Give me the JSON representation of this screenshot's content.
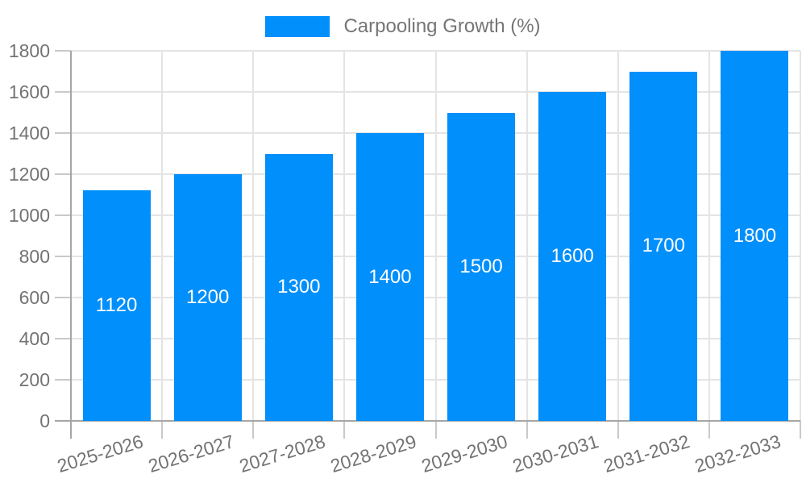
{
  "chart_data": {
    "type": "bar",
    "title": "",
    "legend_position": "top-center",
    "grid": true,
    "categories": [
      "2025-2026",
      "2026-2027",
      "2027-2028",
      "2028-2029",
      "2029-2030",
      "2030-2031",
      "2031-2032",
      "2032-2033"
    ],
    "series": [
      {
        "name": "Carpooling Growth (%)",
        "values": [
          1120,
          1200,
          1300,
          1400,
          1500,
          1600,
          1700,
          1800
        ]
      }
    ],
    "value_labels": [
      "1120",
      "1200",
      "1300",
      "1400",
      "1500",
      "1600",
      "1700",
      "1800"
    ],
    "xlabel": "",
    "ylabel": "",
    "ylim": [
      0,
      1800
    ],
    "ytick_step": 200,
    "ytick_labels": [
      "0",
      "200",
      "400",
      "600",
      "800",
      "1000",
      "1200",
      "1400",
      "1600",
      "1800"
    ],
    "colors": {
      "bar": "#008FFB",
      "legend_text": "#757575",
      "axis_text": "#737373",
      "grid_line": "#e4e4e4",
      "tick_line": "#c9c9c9",
      "axis_line": "#a6a6a6",
      "value_label": "#ffffff",
      "background": "#ffffff"
    }
  }
}
